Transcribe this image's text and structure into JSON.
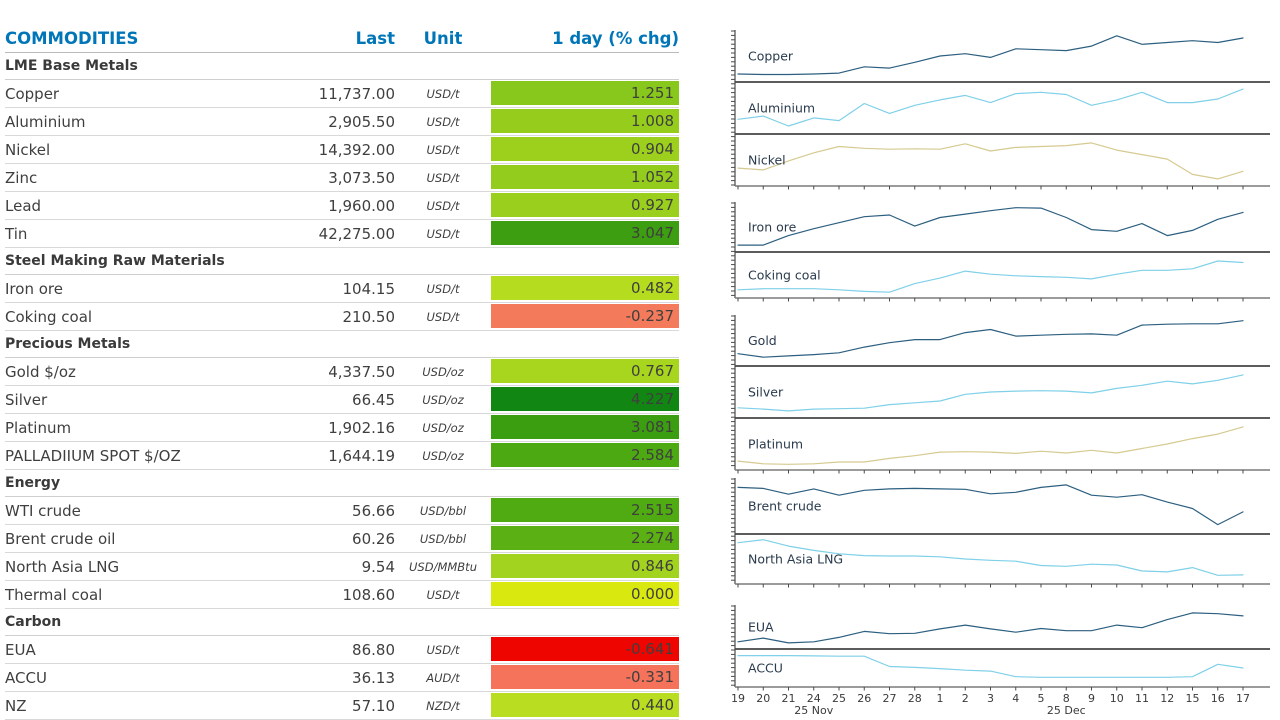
{
  "table": {
    "headers": {
      "commodity": "COMMODITIES",
      "last": "Last",
      "unit": "Unit",
      "chg": "1 day (% chg)"
    },
    "colors": {
      "header_text": "#0076B8",
      "row_text": "#3F3F3F",
      "separator": "#D9D9D9"
    },
    "sections": [
      {
        "label": "LME Base Metals",
        "rows": [
          {
            "name": "Copper",
            "last": "11,737.00",
            "unit": "USD/t",
            "chg": "1.251",
            "chg_color": "#88C71C"
          },
          {
            "name": "Aluminium",
            "last": "2,905.50",
            "unit": "USD/t",
            "chg": "1.008",
            "chg_color": "#96CD1D"
          },
          {
            "name": "Nickel",
            "last": "14,392.00",
            "unit": "USD/t",
            "chg": "0.904",
            "chg_color": "#9CD01D"
          },
          {
            "name": "Zinc",
            "last": "3,073.50",
            "unit": "USD/t",
            "chg": "1.052",
            "chg_color": "#93CC1D"
          },
          {
            "name": "Lead",
            "last": "1,960.00",
            "unit": "USD/t",
            "chg": "0.927",
            "chg_color": "#9ACF1D"
          },
          {
            "name": "Tin",
            "last": "42,275.00",
            "unit": "USD/t",
            "chg": "3.047",
            "chg_color": "#3C9E10"
          }
        ]
      },
      {
        "label": "Steel Making Raw Materials",
        "rows": [
          {
            "name": "Iron ore",
            "last": "104.15",
            "unit": "USD/t",
            "chg": "0.482",
            "chg_color": "#B6DC1F"
          },
          {
            "name": "Coking coal",
            "last": "210.50",
            "unit": "USD/t",
            "chg": "-0.237",
            "chg_color": "#F37A5B"
          }
        ]
      },
      {
        "label": "Precious Metals",
        "rows": [
          {
            "name": "Gold $/oz",
            "last": "4,337.50",
            "unit": "USD/oz",
            "chg": "0.767",
            "chg_color": "#A8D61E"
          },
          {
            "name": "Silver",
            "last": "66.45",
            "unit": "USD/oz",
            "chg": "4.227",
            "chg_color": "#128612"
          },
          {
            "name": "Platinum",
            "last": "1,902.16",
            "unit": "USD/oz",
            "chg": "3.081",
            "chg_color": "#3B9D10"
          },
          {
            "name": "PALLADIIUM SPOT $/OZ",
            "last": "1,644.19",
            "unit": "USD/oz",
            "chg": "2.584",
            "chg_color": "#4DA912"
          }
        ]
      },
      {
        "label": "Energy",
        "rows": [
          {
            "name": "WTI crude",
            "last": "56.66",
            "unit": "USD/bbl",
            "chg": "2.515",
            "chg_color": "#50AB12"
          },
          {
            "name": "Brent crude oil",
            "last": "60.26",
            "unit": "USD/bbl",
            "chg": "2.274",
            "chg_color": "#5BB113"
          },
          {
            "name": "North Asia LNG",
            "last": "9.54",
            "unit": "USD/MMBtu",
            "chg": "0.846",
            "chg_color": "#A2D31E"
          },
          {
            "name": "Thermal coal",
            "last": "108.60",
            "unit": "USD/t",
            "chg": "0.000",
            "chg_color": "#D9E90F"
          }
        ]
      },
      {
        "label": "Carbon",
        "rows": [
          {
            "name": "EUA",
            "last": "86.80",
            "unit": "USD/t",
            "chg": "-0.641",
            "chg_color": "#EE0500"
          },
          {
            "name": "ACCU",
            "last": "36.13",
            "unit": "AUD/t",
            "chg": "-0.331",
            "chg_color": "#F4735A"
          },
          {
            "name": "NZ",
            "last": "57.10",
            "unit": "NZD/t",
            "chg": "0.440",
            "chg_color": "#B9DD20"
          }
        ]
      }
    ]
  },
  "chart_data": {
    "type": "line",
    "note": "stacked sparkline panels; y-axis is unlabeled in source so values are relative 0-100 estimates",
    "x_labels": [
      "19",
      "20",
      "21",
      "24",
      "25",
      "26",
      "27",
      "28",
      "1",
      "2",
      "3",
      "4",
      "5",
      "8",
      "9",
      "10",
      "11",
      "12",
      "15",
      "16",
      "17"
    ],
    "month_labels": [
      {
        "text": "25 Nov",
        "anchor_index": 3
      },
      {
        "text": "25 Dec",
        "anchor_index": 13
      }
    ],
    "line_colors": {
      "navy": "#2C5F80",
      "lightblue": "#7FD0E8",
      "tan": "#D6CA90"
    },
    "label_color": "#2A3B4D",
    "axis_color": "#4A4A4A",
    "groups": [
      {
        "panels": [
          {
            "label": "Copper",
            "color": "navy",
            "values": [
              10,
              9,
              9,
              10,
              12,
              26,
              23,
              36,
              50,
              55,
              47,
              66,
              64,
              62,
              72,
              95,
              76,
              80,
              84,
              80,
              90
            ]
          },
          {
            "label": "Aluminium",
            "color": "lightblue",
            "values": [
              25,
              32,
              10,
              28,
              22,
              60,
              38,
              56,
              68,
              78,
              62,
              82,
              85,
              80,
              56,
              68,
              85,
              62,
              62,
              70,
              92
            ]
          },
          {
            "label": "Nickel",
            "color": "tan",
            "values": [
              32,
              28,
              48,
              66,
              80,
              76,
              74,
              75,
              74,
              86,
              70,
              78,
              80,
              82,
              88,
              72,
              62,
              52,
              18,
              8,
              25
            ]
          }
        ]
      },
      {
        "panels": [
          {
            "label": "Iron ore",
            "color": "navy",
            "values": [
              8,
              8,
              30,
              46,
              60,
              74,
              78,
              52,
              72,
              80,
              88,
              95,
              94,
              72,
              44,
              40,
              58,
              30,
              42,
              68,
              84
            ]
          },
          {
            "label": "Coking coal",
            "color": "lightblue",
            "values": [
              12,
              15,
              15,
              15,
              12,
              8,
              6,
              28,
              42,
              60,
              52,
              48,
              46,
              44,
              40,
              52,
              62,
              62,
              66,
              86,
              82
            ]
          }
        ]
      },
      {
        "panels": [
          {
            "label": "Gold",
            "color": "navy",
            "values": [
              20,
              12,
              15,
              18,
              22,
              35,
              45,
              52,
              52,
              68,
              75,
              60,
              62,
              64,
              65,
              62,
              85,
              87,
              88,
              88,
              95
            ]
          },
          {
            "label": "Silver",
            "color": "lightblue",
            "values": [
              15,
              12,
              8,
              12,
              13,
              14,
              22,
              26,
              30,
              45,
              50,
              52,
              53,
              52,
              48,
              58,
              65,
              74,
              68,
              76,
              88
            ]
          },
          {
            "label": "Platinum",
            "color": "tan",
            "values": [
              12,
              6,
              5,
              6,
              10,
              10,
              18,
              24,
              32,
              33,
              32,
              29,
              34,
              30,
              36,
              30,
              40,
              50,
              62,
              72,
              88
            ]
          }
        ]
      },
      {
        "panels": [
          {
            "label": "Brent crude",
            "color": "navy",
            "values": [
              88,
              86,
              74,
              85,
              72,
              82,
              85,
              86,
              85,
              84,
              75,
              78,
              88,
              93,
              72,
              68,
              73,
              58,
              45,
              12,
              38
            ]
          },
          {
            "label": "North Asia LNG",
            "color": "lightblue",
            "values": [
              88,
              95,
              80,
              70,
              62,
              58,
              57,
              57,
              55,
              50,
              47,
              45,
              35,
              33,
              38,
              36,
              22,
              20,
              30,
              12,
              13
            ]
          }
        ]
      },
      {
        "panels": [
          {
            "label": "EUA",
            "color": "navy",
            "values": [
              10,
              20,
              7,
              10,
              22,
              38,
              32,
              33,
              45,
              55,
              45,
              36,
              46,
              40,
              40,
              55,
              48,
              70,
              88,
              86,
              80
            ]
          },
          {
            "label": "ACCU",
            "color": "lightblue",
            "values": [
              90,
              90,
              90,
              89,
              88,
              88,
              55,
              52,
              48,
              43,
              40,
              22,
              20,
              20,
              20,
              20,
              20,
              20,
              22,
              62,
              50
            ]
          }
        ]
      }
    ]
  }
}
